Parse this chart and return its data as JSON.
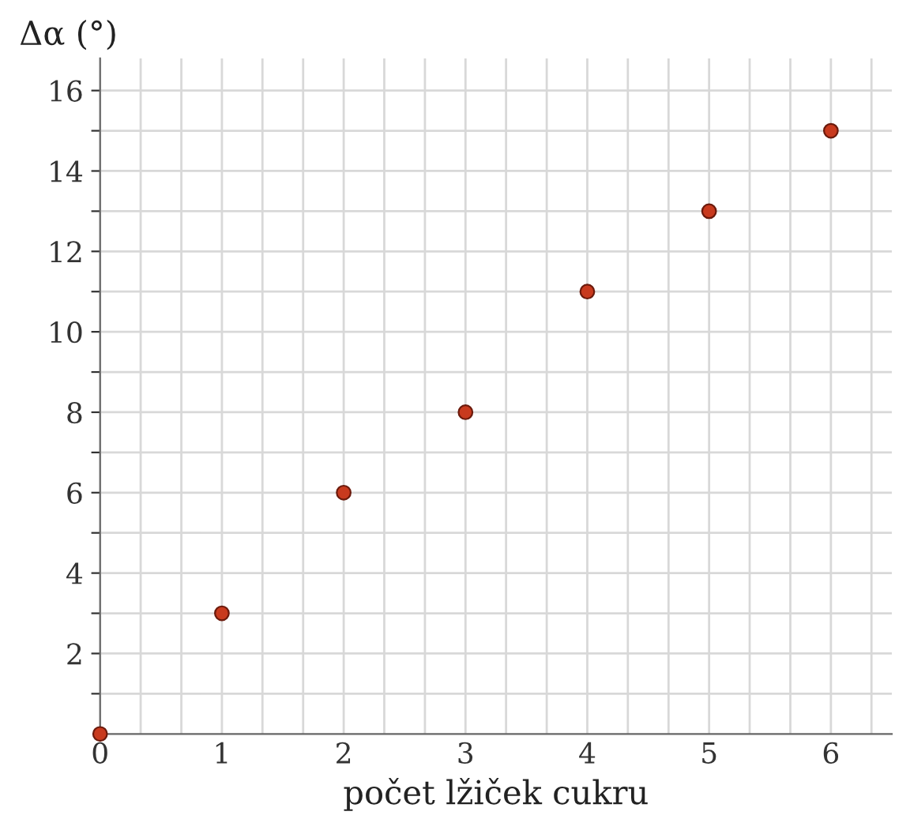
{
  "chart_data": {
    "type": "scatter",
    "xlabel": "počet lžiček cukru",
    "ylabel": "Δα (°)",
    "x": [
      0,
      1,
      2,
      3,
      4,
      5,
      6
    ],
    "series": [
      {
        "color": "#c83a1e",
        "values": [
          0,
          3,
          6,
          8,
          11,
          13,
          15
        ]
      }
    ],
    "xlim": [
      0,
      6.5
    ],
    "ylim": [
      0,
      16.8
    ],
    "xticks": [
      0,
      {
        "value": 0.333,
        "label": null
      },
      {
        "value": 0.667,
        "label": null
      },
      1,
      {
        "value": 1.333,
        "label": null
      },
      {
        "value": 1.667,
        "label": null
      },
      2,
      {
        "value": 2.333,
        "label": null
      },
      {
        "value": 2.667,
        "label": null
      },
      3,
      {
        "value": 3.333,
        "label": null
      },
      {
        "value": 3.667,
        "label": null
      },
      4,
      {
        "value": 4.333,
        "label": null
      },
      {
        "value": 4.667,
        "label": null
      },
      5,
      {
        "value": 5.333,
        "label": null
      },
      {
        "value": 5.667,
        "label": null
      },
      6,
      {
        "value": 6.333,
        "label": null
      }
    ],
    "yticks": [
      {
        "value": 1,
        "label": null
      },
      2,
      {
        "value": 3,
        "label": null
      },
      4,
      {
        "value": 5,
        "label": null
      },
      6,
      {
        "value": 7,
        "label": null
      },
      8,
      {
        "value": 9,
        "label": null
      },
      10,
      {
        "value": 11,
        "label": null
      },
      12,
      {
        "value": 13,
        "label": null
      },
      14,
      {
        "value": 15,
        "label": null
      },
      16
    ],
    "grid": true,
    "marker": "circle"
  }
}
